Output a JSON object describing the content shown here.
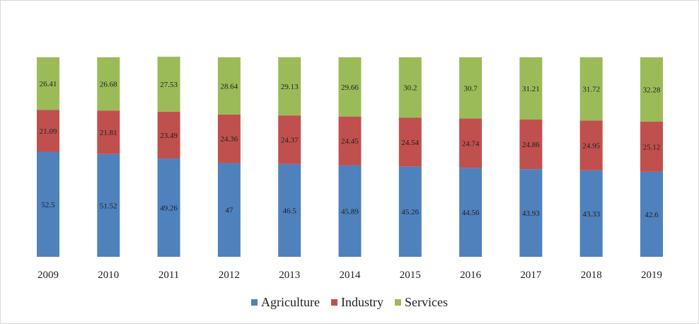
{
  "chart_data": {
    "type": "bar",
    "stacked": true,
    "categories": [
      "2009",
      "2010",
      "2011",
      "2012",
      "2013",
      "2014",
      "2015",
      "2016",
      "2017",
      "2018",
      "2019"
    ],
    "series": [
      {
        "name": "Agriculture",
        "color": "#4f81bd",
        "values": [
          52.5,
          51.52,
          49.26,
          47,
          46.5,
          45.89,
          45.26,
          44.56,
          43.93,
          43.33,
          42.6
        ]
      },
      {
        "name": "Industry",
        "color": "#c0504d",
        "values": [
          21.09,
          21.81,
          23.49,
          24.36,
          24.37,
          24.45,
          24.54,
          24.74,
          24.86,
          24.95,
          25.12
        ]
      },
      {
        "name": "Services",
        "color": "#9bbb59",
        "values": [
          26.41,
          26.68,
          27.53,
          28.64,
          29.13,
          29.66,
          30.2,
          30.7,
          31.21,
          31.72,
          32.28
        ]
      }
    ],
    "value_labels": [
      [
        "52.5",
        "51.52",
        "49.26",
        "47",
        "46.5",
        "45.89",
        "45.26",
        "44.56",
        "43.93",
        "43.33",
        "42.6"
      ],
      [
        "21.09",
        "21.81",
        "23.49",
        "24.36",
        "24.37",
        "24.45",
        "24.54",
        "24.74",
        "24.86",
        "24.95",
        "25.12"
      ],
      [
        "26.41",
        "26.68",
        "27.53",
        "28.64",
        "29.13",
        "29.66",
        "30.2",
        "30.7",
        "31.21",
        "31.72",
        "32.28"
      ]
    ],
    "title": "",
    "xlabel": "",
    "ylabel": "",
    "ylim": [
      0,
      100
    ],
    "grid": false,
    "legend": "bottom"
  }
}
